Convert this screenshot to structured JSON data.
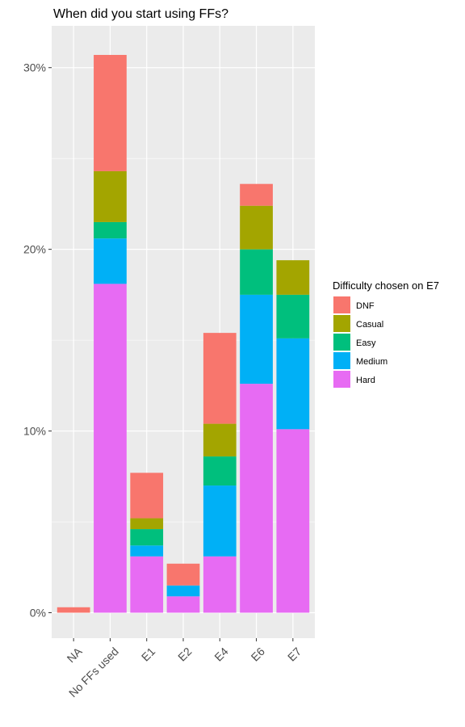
{
  "chart_data": {
    "type": "bar",
    "stacked": true,
    "title": "When did you start using FFs?",
    "xlabel": "",
    "ylabel": "",
    "categories": [
      "NA",
      "No FFs used",
      "E1",
      "E2",
      "E4",
      "E6",
      "E7"
    ],
    "ylim": [
      -1.4,
      32.3
    ],
    "yticks": [
      0,
      10,
      20,
      30
    ],
    "ytick_labels": [
      "0%",
      "10%",
      "20%",
      "30%"
    ],
    "grid": true,
    "legend_position": "right",
    "legend_title": "Difficulty chosen on E7",
    "series": [
      {
        "name": "Hard",
        "color": "#E76BF3",
        "values": [
          0,
          18.1,
          3.1,
          0.9,
          3.1,
          12.6,
          10.1
        ]
      },
      {
        "name": "Medium",
        "color": "#00B0F6",
        "values": [
          0,
          2.5,
          0.6,
          0.6,
          3.9,
          4.9,
          5.0
        ]
      },
      {
        "name": "Easy",
        "color": "#00BF7D",
        "values": [
          0,
          0.9,
          0.9,
          0,
          1.6,
          2.5,
          2.4
        ]
      },
      {
        "name": "Casual",
        "color": "#A3A500",
        "values": [
          0,
          2.8,
          0.6,
          0,
          1.8,
          2.4,
          1.9
        ]
      },
      {
        "name": "DNF",
        "color": "#F8766D",
        "values": [
          0.3,
          6.4,
          2.5,
          1.2,
          5.0,
          1.2,
          0
        ]
      }
    ],
    "legend_order": [
      "DNF",
      "Casual",
      "Easy",
      "Medium",
      "Hard"
    ]
  }
}
